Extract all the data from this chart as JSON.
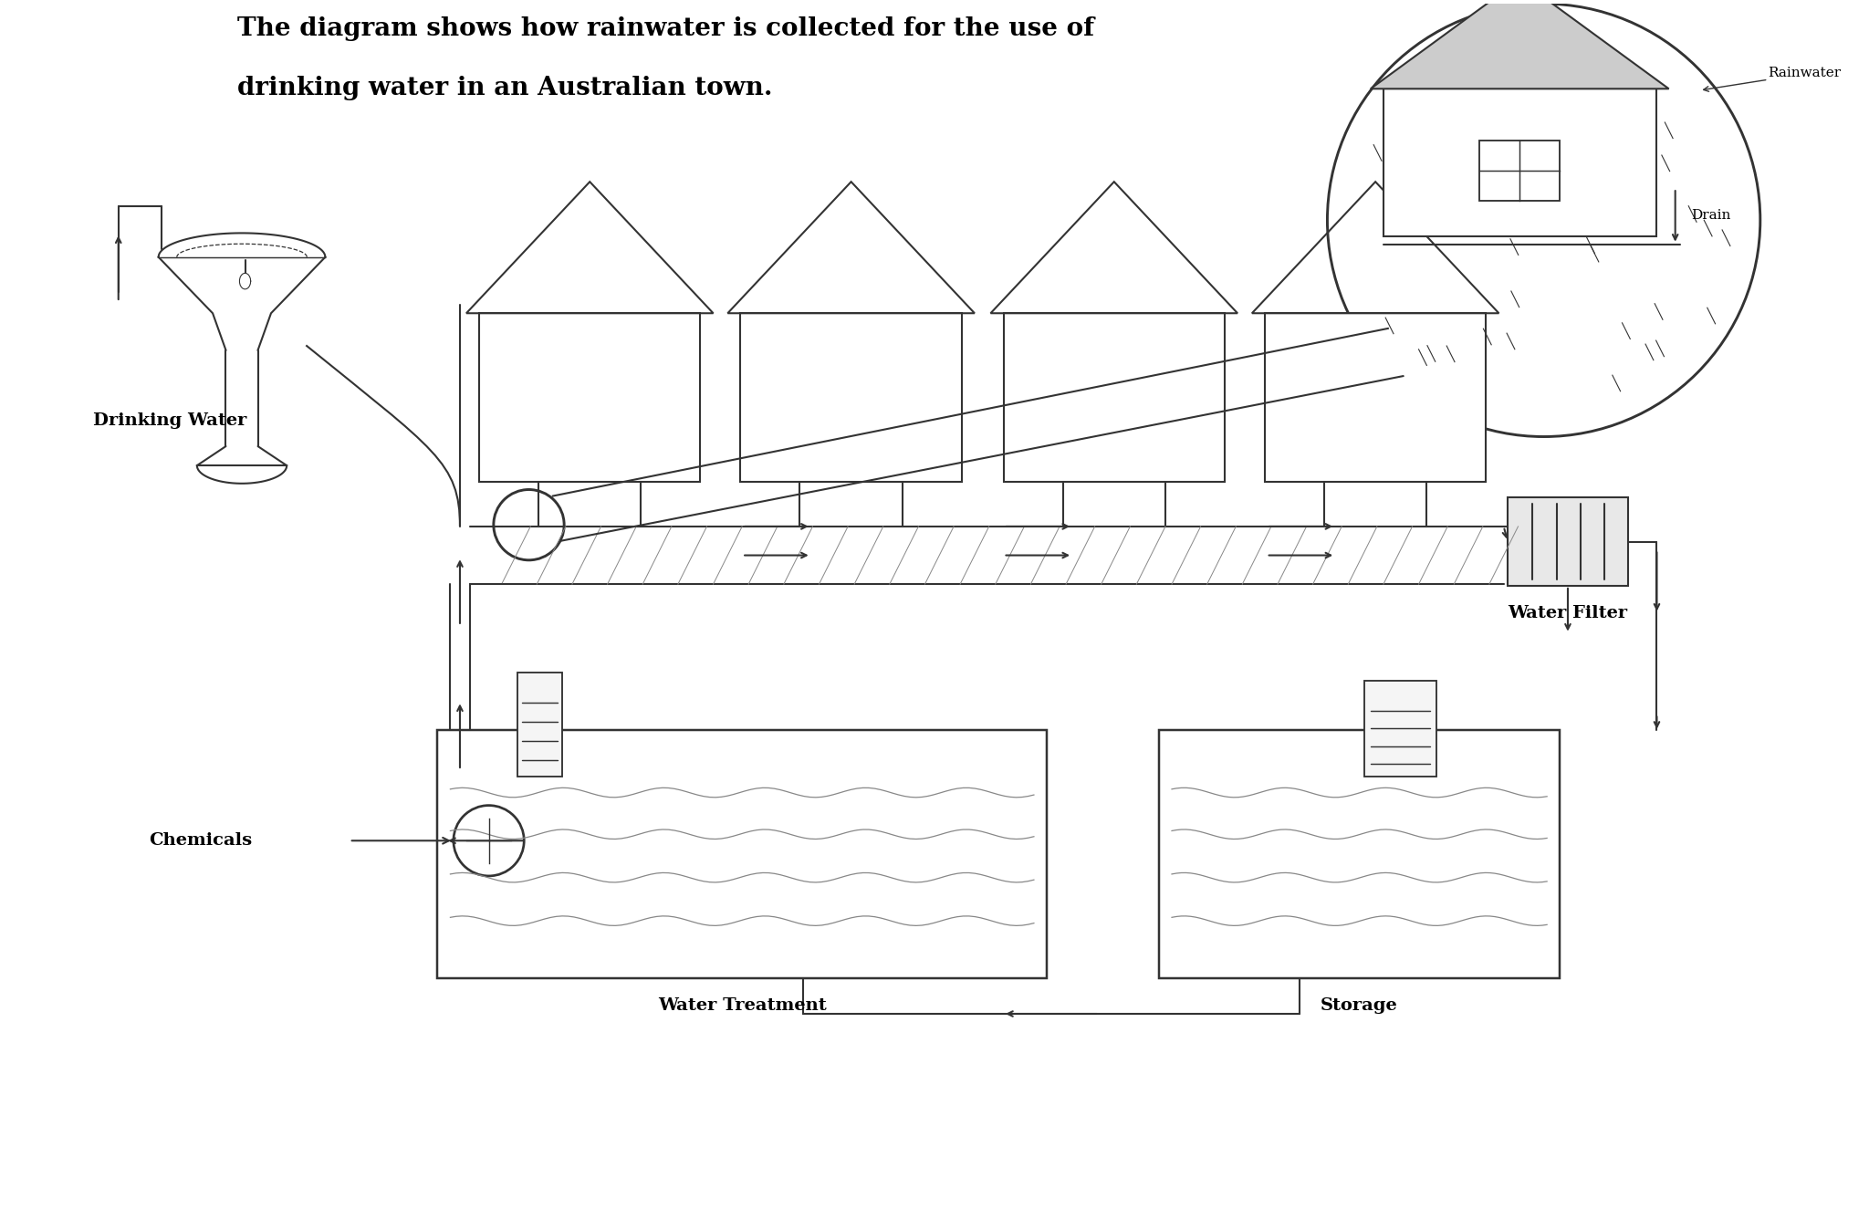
{
  "title_line1": "The diagram shows how rainwater is collected for the use of",
  "title_line2": "drinking water in an Australian town.",
  "bg_color": "#ffffff",
  "line_color": "#333333",
  "label_drinking_water": "Drinking Water",
  "label_chemicals": "Chemicals",
  "label_water_filter": "Water Filter",
  "label_water_treatment": "Water Treatment",
  "label_storage": "Storage",
  "label_rainwater": "Rainwater",
  "label_drain": "Drain",
  "title_fontsize": 20,
  "label_fontsize": 14
}
